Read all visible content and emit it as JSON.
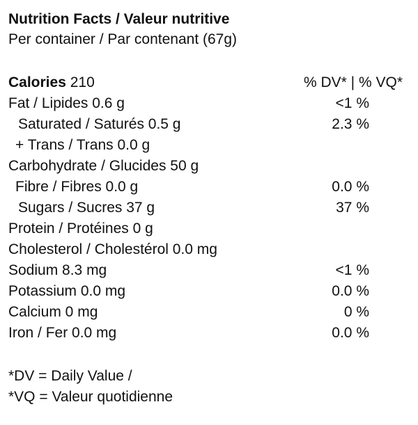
{
  "header": {
    "title": "Nutrition Facts / Valeur nutritive",
    "subtitle": "Per container / Par contenant (67g)"
  },
  "calories": {
    "label": "Calories",
    "value": 210,
    "dv_header": "% DV* | % VQ*"
  },
  "rows": [
    {
      "label": "Fat / Lipides 0.6 g",
      "dv": "<1 %"
    },
    {
      "label": "Saturated / Saturés 0.5 g",
      "dv": "2.3 %"
    },
    {
      "label": "+ Trans / Trans 0.0 g"
    },
    {
      "label": "Carbohydrate / Glucides 50 g"
    },
    {
      "label": "Fibre / Fibres 0.0 g",
      "dv": "0.0 %"
    },
    {
      "label": "Sugars / Sucres 37 g",
      "dv": "37 %"
    },
    {
      "label": "Protein / Protéines 0 g"
    },
    {
      "label": "Cholesterol / Cholestérol 0.0 mg"
    },
    {
      "label": "Sodium 8.3 mg",
      "dv": "<1 %"
    },
    {
      "label": "Potassium 0.0 mg",
      "dv": "0.0 %"
    },
    {
      "label": "Calcium 0 mg",
      "dv": "0 %"
    },
    {
      "label": "Iron / Fer 0.0 mg",
      "dv": "0.0 %"
    }
  ],
  "footnotes": [
    "*DV = Daily Value /",
    "*VQ = Valeur quotidienne"
  ]
}
